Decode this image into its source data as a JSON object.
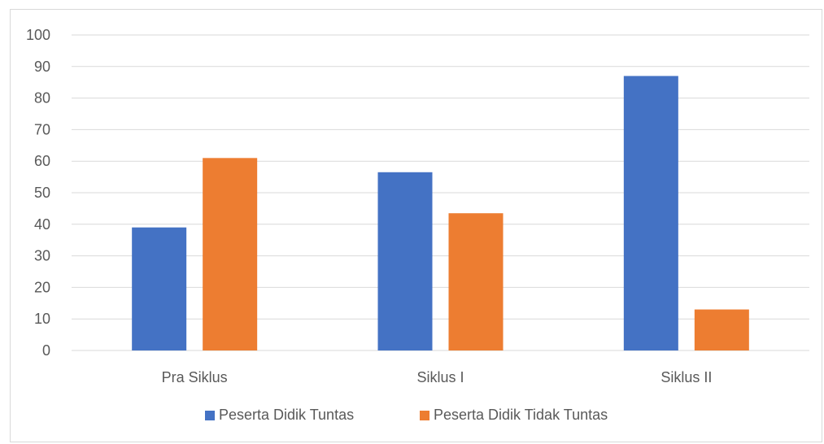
{
  "chart_data": {
    "type": "bar",
    "categories": [
      "Pra Siklus",
      "Siklus I",
      "Siklus II"
    ],
    "series": [
      {
        "name": "Peserta Didik Tuntas",
        "values": [
          39,
          56.5,
          87
        ],
        "color": "#4472c4"
      },
      {
        "name": "Peserta Didik Tidak Tuntas",
        "values": [
          61,
          43.5,
          13
        ],
        "color": "#ed7d31"
      }
    ],
    "ylim": [
      0,
      100
    ],
    "yticks": [
      0,
      10,
      20,
      30,
      40,
      50,
      60,
      70,
      80,
      90,
      100
    ],
    "grid": true,
    "legend_position": "bottom",
    "gridline_color": "#d9d9d9",
    "text_color": "#595959"
  }
}
